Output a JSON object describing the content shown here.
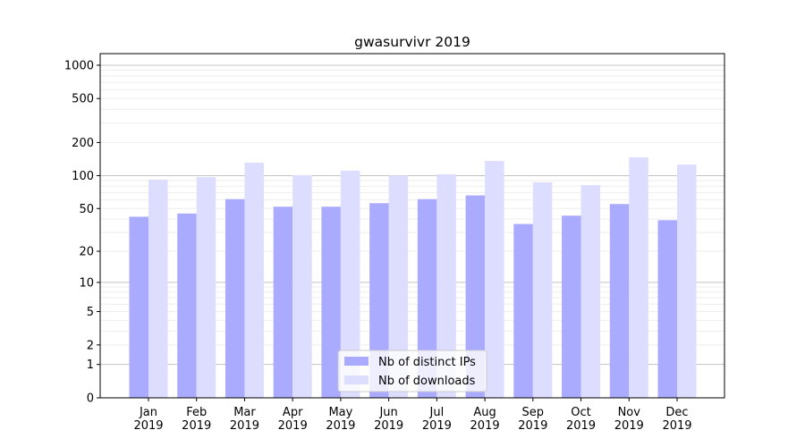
{
  "chart_data": {
    "type": "bar",
    "title": "gwasurvivr 2019",
    "xlabel": "",
    "ylabel": "",
    "yscale": "log10(1+y)",
    "ylim": [
      0,
      1300
    ],
    "yticks": [
      0,
      1,
      2,
      5,
      10,
      20,
      50,
      100,
      200,
      500,
      1000
    ],
    "categories": [
      "Jan\n2019",
      "Feb\n2019",
      "Mar\n2019",
      "Apr\n2019",
      "May\n2019",
      "Jun\n2019",
      "Jul\n2019",
      "Aug\n2019",
      "Sep\n2019",
      "Oct\n2019",
      "Nov\n2019",
      "Dec\n2019"
    ],
    "series": [
      {
        "name": "Nb of distinct IPs",
        "color": "#aaaaff",
        "values": [
          42,
          45,
          61,
          52,
          52,
          56,
          61,
          66,
          36,
          43,
          55,
          39
        ]
      },
      {
        "name": "Nb of downloads",
        "color": "#ddddff",
        "values": [
          92,
          97,
          131,
          101,
          111,
          100,
          103,
          136,
          87,
          82,
          147,
          126
        ]
      }
    ],
    "legend": "bottom-center",
    "grid": true
  }
}
